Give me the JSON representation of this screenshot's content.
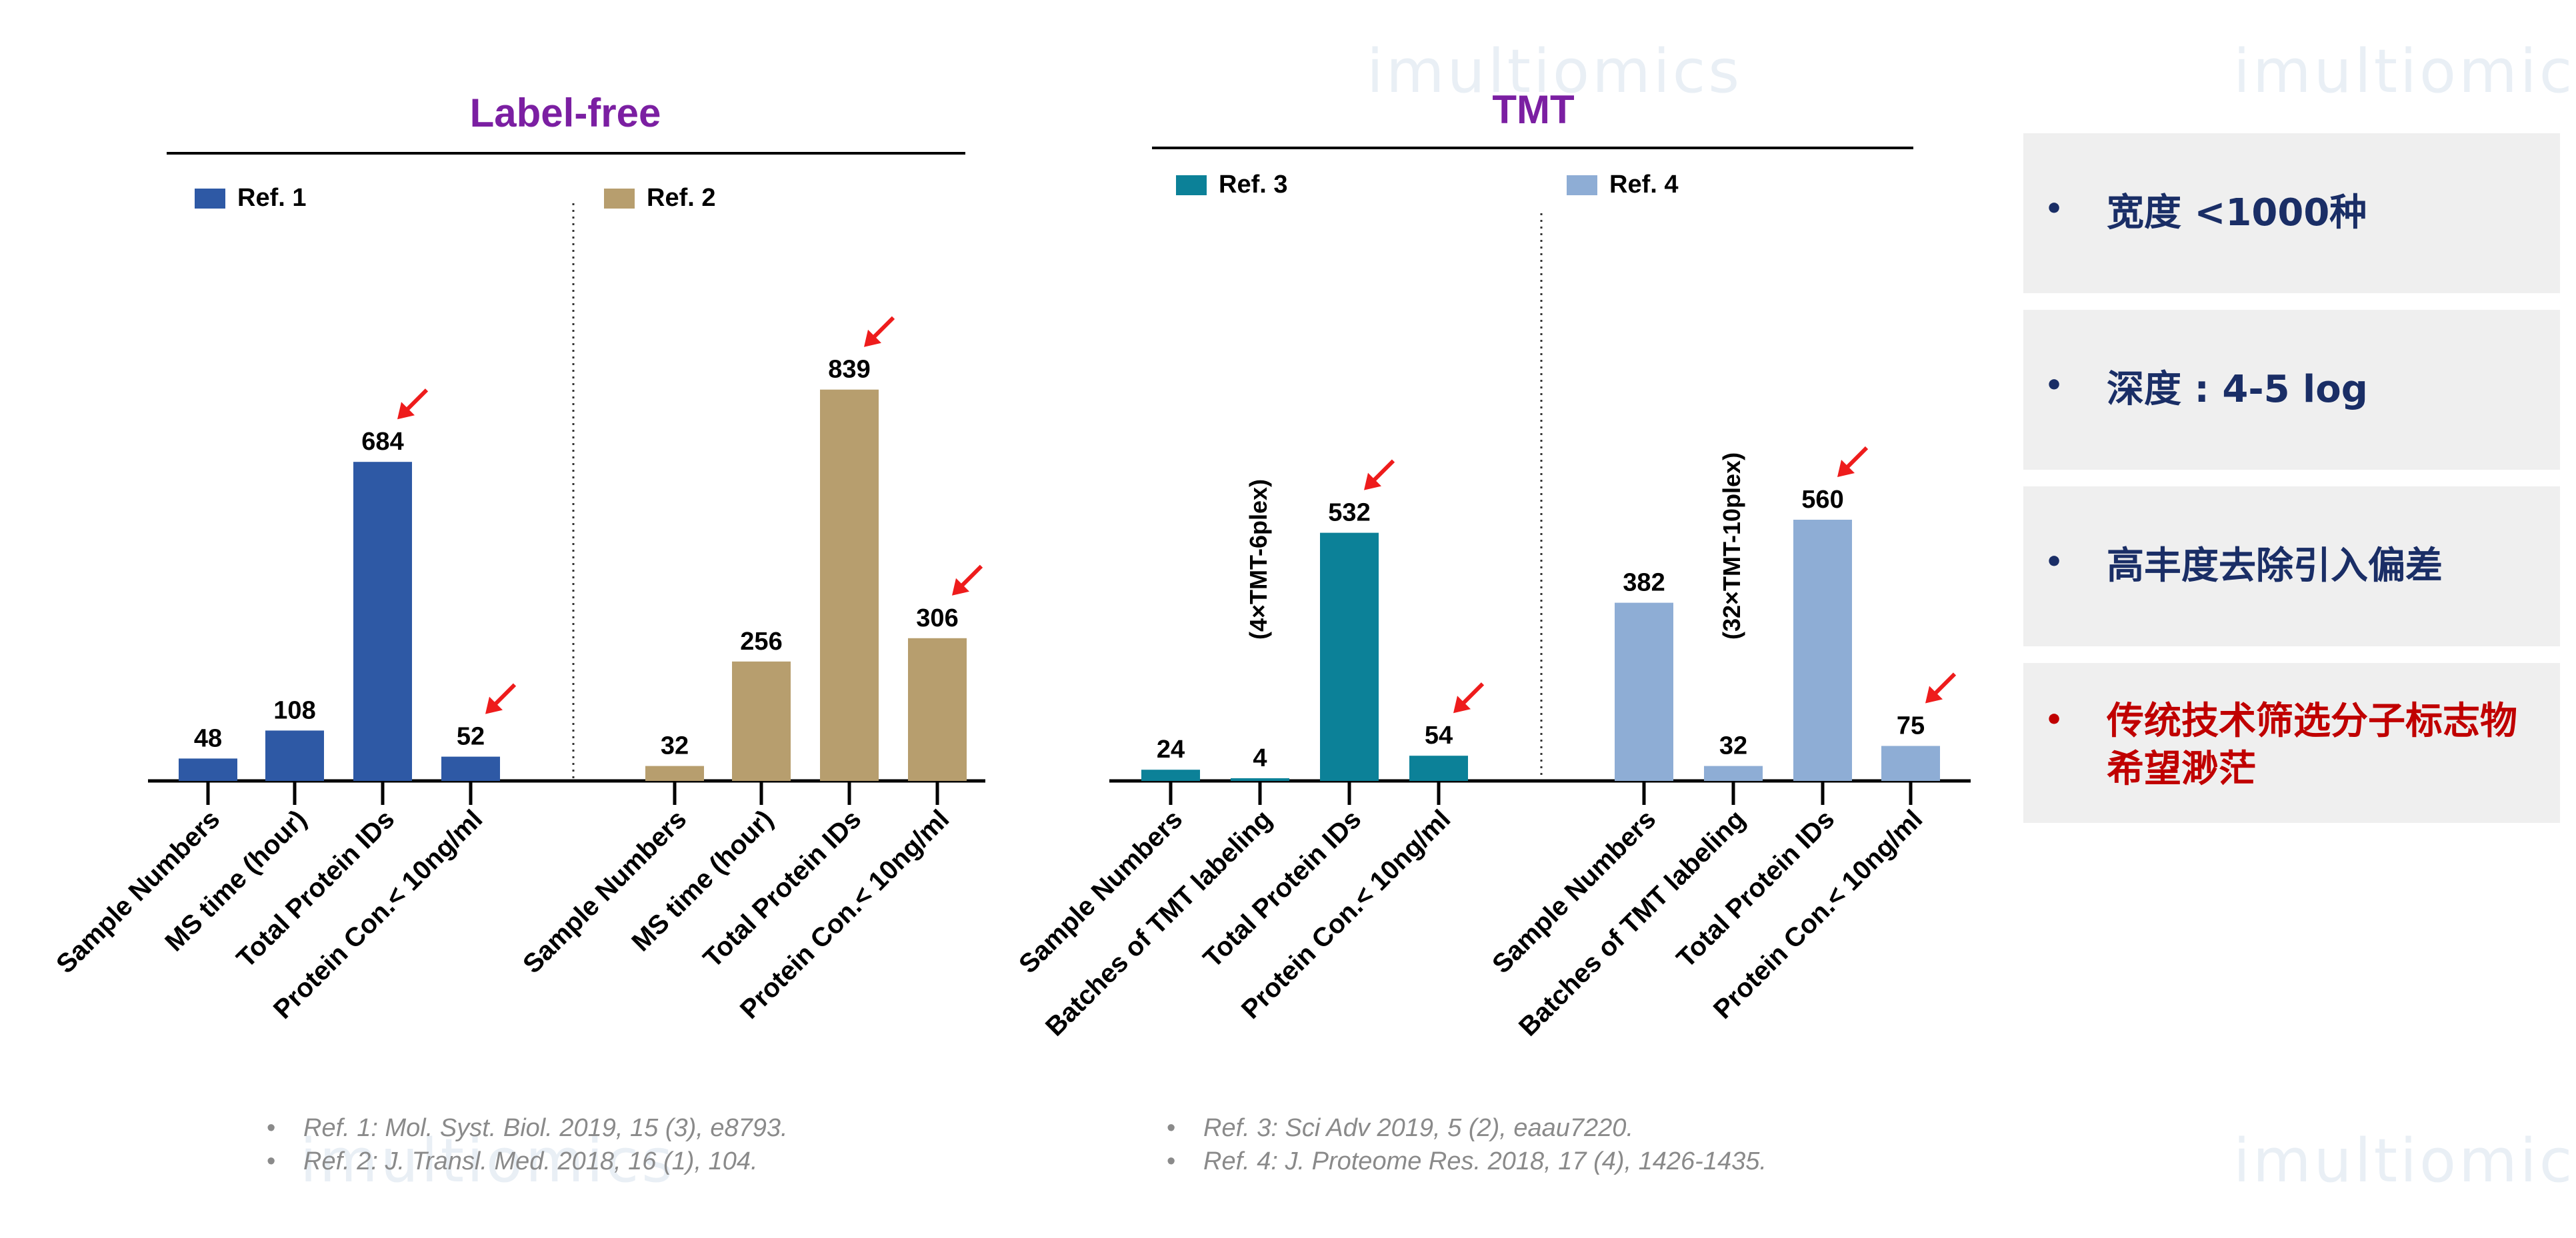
{
  "colors": {
    "ref1": "#2e59a5",
    "ref2": "#b79e6e",
    "ref3": "#0c8198",
    "ref4": "#8eadd5",
    "title": "#7b1fa2",
    "bullet_blue": "#1a2e66",
    "bullet_red": "#c00000",
    "arrow": "#ee1c1c"
  },
  "watermark": "imultiomics",
  "bullets": [
    {
      "text": "宽度 <1000种",
      "color": "bullet_blue"
    },
    {
      "text": "深度 : 4-5 log",
      "color": "bullet_blue"
    },
    {
      "text": "高丰度去除引入偏差",
      "color": "bullet_blue"
    },
    {
      "text": "传统技术筛选分子标志物\n希望渺茫",
      "color": "bullet_red"
    }
  ],
  "references_left": [
    "Ref. 1:  Mol. Syst. Biol. 2019, 15 (3), e8793.",
    "Ref. 2:  J. Transl. Med. 2018, 16 (1), 104."
  ],
  "references_right": [
    "Ref. 3:  Sci Adv 2019, 5 (2), eaau7220.",
    "Ref. 4:    J. Proteome Res. 2018, 17 (4), 1426-1435."
  ],
  "chart_data": [
    {
      "type": "bar",
      "title": "Label-free",
      "series": [
        {
          "name": "Ref. 1",
          "color": "ref1",
          "categories": [
            "Sample Numbers",
            "MS time (hour)",
            "Total Protein IDs",
            "Protein Con.< 10ng/ml"
          ],
          "values": [
            48,
            108,
            684,
            52
          ],
          "arrows": [
            2,
            3
          ]
        },
        {
          "name": "Ref. 2",
          "color": "ref2",
          "categories": [
            "Sample Numbers",
            "MS time (hour)",
            "Total Protein IDs",
            "Protein Con.< 10ng/ml"
          ],
          "values": [
            32,
            256,
            839,
            306
          ],
          "arrows": [
            2,
            3
          ]
        }
      ]
    },
    {
      "type": "bar",
      "title": "TMT",
      "series": [
        {
          "name": "Ref. 3",
          "color": "ref3",
          "categories": [
            "Sample Numbers",
            "Batches of TMT labeling",
            "Total Protein IDs",
            "Protein Con.< 10ng/ml"
          ],
          "values": [
            24,
            4,
            532,
            54
          ],
          "arrows": [
            2,
            3
          ],
          "annotation": {
            "index": 1,
            "text": "(4×TMT-6plex)"
          }
        },
        {
          "name": "Ref. 4",
          "color": "ref4",
          "categories": [
            "Sample Numbers",
            "Batches of TMT labeling",
            "Total Protein IDs",
            "Protein Con.< 10ng/ml"
          ],
          "values": [
            382,
            32,
            560,
            75
          ],
          "arrows": [
            2,
            3
          ],
          "annotation": {
            "index": 1,
            "text": "(32×TMT-10plex)"
          }
        }
      ]
    }
  ]
}
